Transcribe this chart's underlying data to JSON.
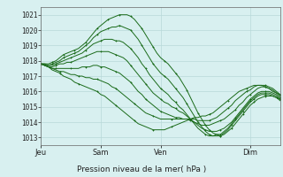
{
  "title": "Pression niveau de la mer( hPa )",
  "bg_color": "#d8f0f0",
  "grid_color": "#b8d8d8",
  "line_color": "#1a6b1a",
  "ylim": [
    1012.5,
    1021.5
  ],
  "yticks": [
    1013,
    1014,
    1015,
    1016,
    1017,
    1018,
    1019,
    1020,
    1021
  ],
  "xtick_labels": [
    "Jeu",
    "Sam",
    "Ven",
    "Dim"
  ],
  "xtick_positions": [
    0,
    16,
    32,
    56
  ],
  "n_points": 65,
  "series": [
    [
      1017.8,
      1017.8,
      1017.8,
      1017.9,
      1018.0,
      1018.2,
      1018.4,
      1018.5,
      1018.6,
      1018.7,
      1018.8,
      1019.0,
      1019.2,
      1019.5,
      1019.8,
      1020.1,
      1020.3,
      1020.5,
      1020.7,
      1020.8,
      1020.9,
      1021.0,
      1021.0,
      1021.0,
      1020.9,
      1020.7,
      1020.4,
      1020.1,
      1019.7,
      1019.3,
      1018.9,
      1018.5,
      1018.2,
      1018.0,
      1017.8,
      1017.5,
      1017.2,
      1016.9,
      1016.5,
      1016.1,
      1015.6,
      1015.1,
      1014.6,
      1014.2,
      1013.8,
      1013.5,
      1013.3,
      1013.2,
      1013.1,
      1013.2,
      1013.4,
      1013.6,
      1013.9,
      1014.2,
      1014.5,
      1014.8,
      1015.1,
      1015.3,
      1015.5,
      1015.6,
      1015.7,
      1015.7,
      1015.7,
      1015.6,
      1015.5
    ],
    [
      1017.8,
      1017.8,
      1017.7,
      1017.8,
      1017.9,
      1018.0,
      1018.2,
      1018.3,
      1018.4,
      1018.5,
      1018.6,
      1018.8,
      1019.0,
      1019.2,
      1019.5,
      1019.7,
      1019.9,
      1020.0,
      1020.1,
      1020.2,
      1020.2,
      1020.3,
      1020.2,
      1020.1,
      1020.0,
      1019.7,
      1019.4,
      1019.0,
      1018.6,
      1018.2,
      1017.8,
      1017.5,
      1017.2,
      1017.0,
      1016.8,
      1016.5,
      1016.2,
      1015.9,
      1015.6,
      1015.2,
      1014.8,
      1014.4,
      1014.0,
      1013.7,
      1013.4,
      1013.2,
      1013.1,
      1013.1,
      1013.1,
      1013.3,
      1013.5,
      1013.8,
      1014.1,
      1014.4,
      1014.7,
      1015.0,
      1015.3,
      1015.5,
      1015.7,
      1015.8,
      1015.8,
      1015.8,
      1015.7,
      1015.6,
      1015.4
    ],
    [
      1017.8,
      1017.7,
      1017.7,
      1017.7,
      1017.8,
      1017.9,
      1018.0,
      1018.1,
      1018.2,
      1018.3,
      1018.4,
      1018.5,
      1018.7,
      1018.9,
      1019.1,
      1019.2,
      1019.3,
      1019.4,
      1019.4,
      1019.4,
      1019.3,
      1019.3,
      1019.2,
      1019.0,
      1018.8,
      1018.5,
      1018.2,
      1017.8,
      1017.5,
      1017.1,
      1016.8,
      1016.5,
      1016.2,
      1016.0,
      1015.8,
      1015.5,
      1015.3,
      1015.0,
      1014.8,
      1014.5,
      1014.2,
      1013.9,
      1013.6,
      1013.4,
      1013.2,
      1013.1,
      1013.1,
      1013.2,
      1013.2,
      1013.4,
      1013.6,
      1013.9,
      1014.2,
      1014.5,
      1014.8,
      1015.1,
      1015.4,
      1015.6,
      1015.8,
      1015.9,
      1015.9,
      1015.9,
      1015.8,
      1015.7,
      1015.5
    ],
    [
      1017.8,
      1017.7,
      1017.6,
      1017.6,
      1017.7,
      1017.8,
      1017.8,
      1017.9,
      1017.9,
      1018.0,
      1018.1,
      1018.2,
      1018.3,
      1018.4,
      1018.5,
      1018.6,
      1018.6,
      1018.6,
      1018.6,
      1018.5,
      1018.4,
      1018.3,
      1018.2,
      1018.0,
      1017.7,
      1017.4,
      1017.1,
      1016.8,
      1016.5,
      1016.2,
      1015.9,
      1015.7,
      1015.5,
      1015.3,
      1015.2,
      1015.0,
      1014.9,
      1014.7,
      1014.6,
      1014.4,
      1014.2,
      1014.0,
      1013.8,
      1013.6,
      1013.5,
      1013.4,
      1013.4,
      1013.4,
      1013.5,
      1013.6,
      1013.8,
      1014.0,
      1014.3,
      1014.6,
      1014.9,
      1015.2,
      1015.5,
      1015.7,
      1015.9,
      1016.0,
      1016.0,
      1016.0,
      1015.9,
      1015.8,
      1015.6
    ],
    [
      1017.8,
      1017.7,
      1017.6,
      1017.5,
      1017.5,
      1017.5,
      1017.5,
      1017.5,
      1017.5,
      1017.5,
      1017.5,
      1017.6,
      1017.6,
      1017.6,
      1017.7,
      1017.7,
      1017.6,
      1017.6,
      1017.5,
      1017.4,
      1017.3,
      1017.2,
      1017.0,
      1016.8,
      1016.6,
      1016.3,
      1016.0,
      1015.8,
      1015.5,
      1015.3,
      1015.1,
      1014.9,
      1014.7,
      1014.6,
      1014.5,
      1014.4,
      1014.3,
      1014.3,
      1014.2,
      1014.2,
      1014.1,
      1014.0,
      1013.9,
      1013.8,
      1013.8,
      1013.8,
      1013.9,
      1014.0,
      1014.1,
      1014.2,
      1014.4,
      1014.6,
      1014.8,
      1015.1,
      1015.3,
      1015.6,
      1015.8,
      1016.0,
      1016.2,
      1016.3,
      1016.3,
      1016.2,
      1016.1,
      1015.9,
      1015.8
    ],
    [
      1017.8,
      1017.7,
      1017.6,
      1017.5,
      1017.4,
      1017.3,
      1017.3,
      1017.2,
      1017.1,
      1017.1,
      1017.0,
      1017.0,
      1016.9,
      1016.9,
      1016.8,
      1016.8,
      1016.7,
      1016.6,
      1016.5,
      1016.3,
      1016.2,
      1016.0,
      1015.8,
      1015.6,
      1015.4,
      1015.2,
      1015.0,
      1014.8,
      1014.6,
      1014.5,
      1014.4,
      1014.3,
      1014.2,
      1014.2,
      1014.2,
      1014.2,
      1014.2,
      1014.2,
      1014.2,
      1014.2,
      1014.2,
      1014.2,
      1014.1,
      1014.1,
      1014.1,
      1014.1,
      1014.2,
      1014.3,
      1014.5,
      1014.7,
      1014.9,
      1015.1,
      1015.4,
      1015.6,
      1015.8,
      1016.0,
      1016.1,
      1016.3,
      1016.4,
      1016.4,
      1016.4,
      1016.3,
      1016.2,
      1016.0,
      1015.8
    ],
    [
      1017.8,
      1017.7,
      1017.6,
      1017.4,
      1017.3,
      1017.2,
      1017.0,
      1016.9,
      1016.8,
      1016.6,
      1016.5,
      1016.4,
      1016.3,
      1016.2,
      1016.1,
      1016.0,
      1015.8,
      1015.7,
      1015.5,
      1015.3,
      1015.1,
      1014.9,
      1014.7,
      1014.5,
      1014.3,
      1014.1,
      1013.9,
      1013.8,
      1013.7,
      1013.6,
      1013.5,
      1013.5,
      1013.5,
      1013.5,
      1013.6,
      1013.7,
      1013.8,
      1013.9,
      1014.0,
      1014.1,
      1014.2,
      1014.3,
      1014.3,
      1014.4,
      1014.4,
      1014.5,
      1014.6,
      1014.8,
      1015.0,
      1015.2,
      1015.4,
      1015.6,
      1015.8,
      1016.0,
      1016.1,
      1016.2,
      1016.3,
      1016.4,
      1016.4,
      1016.4,
      1016.3,
      1016.2,
      1016.0,
      1015.9,
      1015.7
    ]
  ]
}
